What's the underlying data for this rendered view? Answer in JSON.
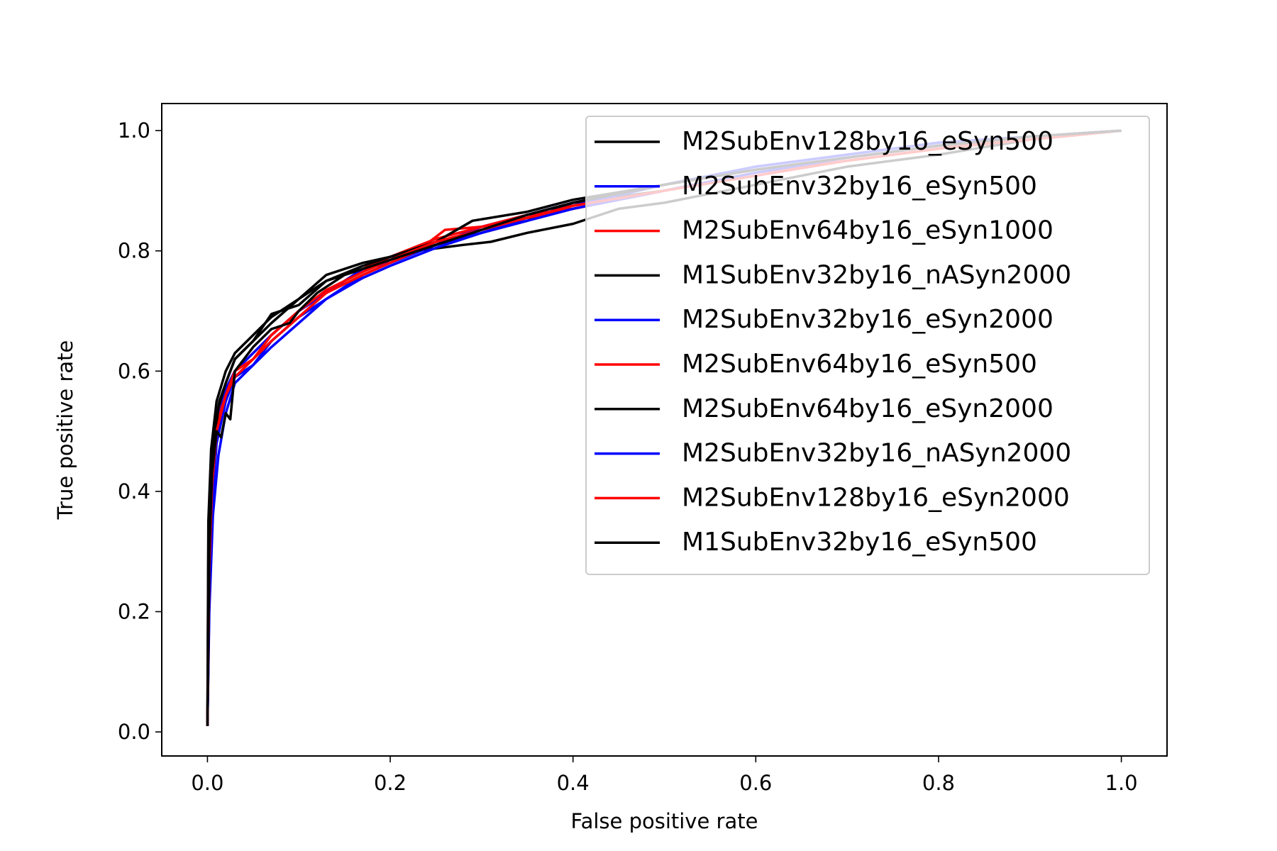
{
  "chart_data": {
    "type": "line",
    "title": "",
    "xlabel": "False positive rate",
    "ylabel": "True positive rate",
    "xlim": [
      -0.05,
      1.05
    ],
    "ylim": [
      -0.04,
      1.045
    ],
    "xticks": [
      0.0,
      0.2,
      0.4,
      0.6,
      0.8,
      1.0
    ],
    "yticks": [
      0.0,
      0.2,
      0.4,
      0.6,
      0.8,
      1.0
    ],
    "xtick_labels": [
      "0.0",
      "0.2",
      "0.4",
      "0.6",
      "0.8",
      "1.0"
    ],
    "ytick_labels": [
      "0.0",
      "0.2",
      "0.4",
      "0.6",
      "0.8",
      "1.0"
    ],
    "grid": false,
    "legend_position": "upper right",
    "series": [
      {
        "name": "M2SubEnv128by16_eSyn500",
        "color": "#000000",
        "points": [
          [
            0,
            0.01
          ],
          [
            0.001,
            0.3
          ],
          [
            0.003,
            0.42
          ],
          [
            0.008,
            0.5
          ],
          [
            0.013,
            0.55
          ],
          [
            0.02,
            0.58
          ],
          [
            0.03,
            0.62
          ],
          [
            0.05,
            0.65
          ],
          [
            0.07,
            0.68
          ],
          [
            0.1,
            0.72
          ],
          [
            0.13,
            0.75
          ],
          [
            0.17,
            0.77
          ],
          [
            0.2,
            0.79
          ],
          [
            0.25,
            0.81
          ],
          [
            0.3,
            0.83
          ],
          [
            0.35,
            0.85
          ],
          [
            0.4,
            0.88
          ],
          [
            0.5,
            0.9
          ],
          [
            0.6,
            0.93
          ],
          [
            0.7,
            0.95
          ],
          [
            0.8,
            0.97
          ],
          [
            0.9,
            0.99
          ],
          [
            1.0,
            1.0
          ]
        ]
      },
      {
        "name": "M2SubEnv32by16_eSyn500",
        "color": "#0000ff",
        "points": [
          [
            0,
            0.01
          ],
          [
            0.002,
            0.22
          ],
          [
            0.005,
            0.38
          ],
          [
            0.01,
            0.48
          ],
          [
            0.02,
            0.55
          ],
          [
            0.03,
            0.59
          ],
          [
            0.05,
            0.61
          ],
          [
            0.07,
            0.65
          ],
          [
            0.1,
            0.69
          ],
          [
            0.13,
            0.72
          ],
          [
            0.17,
            0.76
          ],
          [
            0.2,
            0.78
          ],
          [
            0.25,
            0.81
          ],
          [
            0.3,
            0.84
          ],
          [
            0.35,
            0.86
          ],
          [
            0.4,
            0.88
          ],
          [
            0.5,
            0.91
          ],
          [
            0.6,
            0.94
          ],
          [
            0.7,
            0.96
          ],
          [
            0.8,
            0.98
          ],
          [
            0.9,
            0.99
          ],
          [
            1.0,
            1.0
          ]
        ]
      },
      {
        "name": "M2SubEnv64by16_eSyn1000",
        "color": "#ff0000",
        "points": [
          [
            0,
            0.01
          ],
          [
            0.002,
            0.3
          ],
          [
            0.006,
            0.45
          ],
          [
            0.012,
            0.53
          ],
          [
            0.02,
            0.57
          ],
          [
            0.03,
            0.6
          ],
          [
            0.05,
            0.63
          ],
          [
            0.07,
            0.66
          ],
          [
            0.1,
            0.7
          ],
          [
            0.13,
            0.73
          ],
          [
            0.17,
            0.77
          ],
          [
            0.2,
            0.79
          ],
          [
            0.25,
            0.82
          ],
          [
            0.3,
            0.84
          ],
          [
            0.35,
            0.86
          ],
          [
            0.4,
            0.87
          ],
          [
            0.5,
            0.9
          ],
          [
            0.6,
            0.93
          ],
          [
            0.7,
            0.95
          ],
          [
            0.8,
            0.97
          ],
          [
            0.9,
            0.99
          ],
          [
            1.0,
            1.0
          ]
        ]
      },
      {
        "name": "M1SubEnv32by16_nASyn2000",
        "color": "#000000",
        "points": [
          [
            0,
            0.01
          ],
          [
            0.001,
            0.35
          ],
          [
            0.004,
            0.47
          ],
          [
            0.01,
            0.55
          ],
          [
            0.02,
            0.6
          ],
          [
            0.03,
            0.63
          ],
          [
            0.05,
            0.66
          ],
          [
            0.07,
            0.69
          ],
          [
            0.1,
            0.72
          ],
          [
            0.13,
            0.76
          ],
          [
            0.17,
            0.78
          ],
          [
            0.2,
            0.79
          ],
          [
            0.23,
            0.8
          ],
          [
            0.28,
            0.81
          ],
          [
            0.31,
            0.815
          ],
          [
            0.35,
            0.83
          ],
          [
            0.4,
            0.845
          ],
          [
            0.45,
            0.87
          ],
          [
            0.5,
            0.88
          ],
          [
            0.6,
            0.91
          ],
          [
            0.7,
            0.94
          ],
          [
            0.8,
            0.96
          ],
          [
            0.9,
            0.985
          ],
          [
            1.0,
            1.0
          ]
        ]
      },
      {
        "name": "M2SubEnv32by16_eSyn2000",
        "color": "#0000ff",
        "points": [
          [
            0,
            0.01
          ],
          [
            0.002,
            0.25
          ],
          [
            0.006,
            0.42
          ],
          [
            0.012,
            0.52
          ],
          [
            0.02,
            0.57
          ],
          [
            0.03,
            0.6
          ],
          [
            0.05,
            0.63
          ],
          [
            0.07,
            0.66
          ],
          [
            0.1,
            0.7
          ],
          [
            0.13,
            0.73
          ],
          [
            0.17,
            0.77
          ],
          [
            0.2,
            0.78
          ],
          [
            0.25,
            0.81
          ],
          [
            0.3,
            0.83
          ],
          [
            0.35,
            0.855
          ],
          [
            0.4,
            0.875
          ],
          [
            0.5,
            0.91
          ],
          [
            0.6,
            0.94
          ],
          [
            0.7,
            0.96
          ],
          [
            0.8,
            0.98
          ],
          [
            0.9,
            0.99
          ],
          [
            1.0,
            1.0
          ]
        ]
      },
      {
        "name": "M2SubEnv64by16_eSyn500",
        "color": "#ff0000",
        "points": [
          [
            0,
            0.01
          ],
          [
            0.002,
            0.28
          ],
          [
            0.005,
            0.42
          ],
          [
            0.01,
            0.51
          ],
          [
            0.02,
            0.56
          ],
          [
            0.03,
            0.59
          ],
          [
            0.05,
            0.62
          ],
          [
            0.07,
            0.65
          ],
          [
            0.1,
            0.69
          ],
          [
            0.13,
            0.73
          ],
          [
            0.17,
            0.76
          ],
          [
            0.2,
            0.78
          ],
          [
            0.23,
            0.8
          ],
          [
            0.26,
            0.835
          ],
          [
            0.3,
            0.84
          ],
          [
            0.35,
            0.855
          ],
          [
            0.4,
            0.87
          ],
          [
            0.5,
            0.9
          ],
          [
            0.6,
            0.93
          ],
          [
            0.7,
            0.95
          ],
          [
            0.8,
            0.97
          ],
          [
            0.9,
            0.985
          ],
          [
            1.0,
            1.0
          ]
        ]
      },
      {
        "name": "M2SubEnv64by16_eSyn2000",
        "color": "#000000",
        "points": [
          [
            0,
            0.01
          ],
          [
            0.002,
            0.32
          ],
          [
            0.006,
            0.46
          ],
          [
            0.012,
            0.54
          ],
          [
            0.02,
            0.58
          ],
          [
            0.03,
            0.62
          ],
          [
            0.05,
            0.65
          ],
          [
            0.07,
            0.695
          ],
          [
            0.1,
            0.71
          ],
          [
            0.13,
            0.75
          ],
          [
            0.17,
            0.775
          ],
          [
            0.2,
            0.79
          ],
          [
            0.25,
            0.815
          ],
          [
            0.29,
            0.85
          ],
          [
            0.35,
            0.865
          ],
          [
            0.4,
            0.885
          ],
          [
            0.5,
            0.91
          ],
          [
            0.6,
            0.935
          ],
          [
            0.7,
            0.955
          ],
          [
            0.8,
            0.975
          ],
          [
            0.9,
            0.99
          ],
          [
            1.0,
            1.0
          ]
        ]
      },
      {
        "name": "M2SubEnv32by16_nASyn2000",
        "color": "#0000ff",
        "points": [
          [
            0,
            0.01
          ],
          [
            0.002,
            0.2
          ],
          [
            0.006,
            0.36
          ],
          [
            0.012,
            0.46
          ],
          [
            0.02,
            0.53
          ],
          [
            0.03,
            0.58
          ],
          [
            0.05,
            0.61
          ],
          [
            0.07,
            0.64
          ],
          [
            0.1,
            0.68
          ],
          [
            0.13,
            0.72
          ],
          [
            0.17,
            0.755
          ],
          [
            0.2,
            0.775
          ],
          [
            0.25,
            0.805
          ],
          [
            0.3,
            0.83
          ],
          [
            0.35,
            0.85
          ],
          [
            0.4,
            0.87
          ],
          [
            0.5,
            0.9
          ],
          [
            0.6,
            0.93
          ],
          [
            0.7,
            0.955
          ],
          [
            0.8,
            0.975
          ],
          [
            0.9,
            0.99
          ],
          [
            1.0,
            1.0
          ]
        ]
      },
      {
        "name": "M2SubEnv128by16_eSyn2000",
        "color": "#ff0000",
        "points": [
          [
            0,
            0.01
          ],
          [
            0.002,
            0.27
          ],
          [
            0.005,
            0.41
          ],
          [
            0.01,
            0.5
          ],
          [
            0.02,
            0.56
          ],
          [
            0.03,
            0.6
          ],
          [
            0.05,
            0.62
          ],
          [
            0.07,
            0.66
          ],
          [
            0.1,
            0.7
          ],
          [
            0.13,
            0.735
          ],
          [
            0.17,
            0.765
          ],
          [
            0.2,
            0.785
          ],
          [
            0.25,
            0.815
          ],
          [
            0.3,
            0.835
          ],
          [
            0.35,
            0.855
          ],
          [
            0.4,
            0.875
          ],
          [
            0.5,
            0.9
          ],
          [
            0.6,
            0.925
          ],
          [
            0.7,
            0.95
          ],
          [
            0.8,
            0.97
          ],
          [
            0.9,
            0.985
          ],
          [
            1.0,
            1.0
          ]
        ]
      },
      {
        "name": "M1SubEnv32by16_eSyn500",
        "color": "#000000",
        "points": [
          [
            0,
            0.01
          ],
          [
            0.002,
            0.3
          ],
          [
            0.005,
            0.43
          ],
          [
            0.01,
            0.5
          ],
          [
            0.015,
            0.49
          ],
          [
            0.02,
            0.53
          ],
          [
            0.025,
            0.52
          ],
          [
            0.03,
            0.6
          ],
          [
            0.05,
            0.64
          ],
          [
            0.07,
            0.67
          ],
          [
            0.09,
            0.68
          ],
          [
            0.1,
            0.7
          ],
          [
            0.12,
            0.73
          ],
          [
            0.15,
            0.76
          ],
          [
            0.2,
            0.785
          ],
          [
            0.25,
            0.81
          ],
          [
            0.3,
            0.835
          ],
          [
            0.35,
            0.86
          ],
          [
            0.4,
            0.88
          ],
          [
            0.5,
            0.91
          ],
          [
            0.6,
            0.935
          ],
          [
            0.7,
            0.955
          ],
          [
            0.8,
            0.975
          ],
          [
            0.9,
            0.99
          ],
          [
            1.0,
            1.0
          ]
        ]
      }
    ]
  }
}
